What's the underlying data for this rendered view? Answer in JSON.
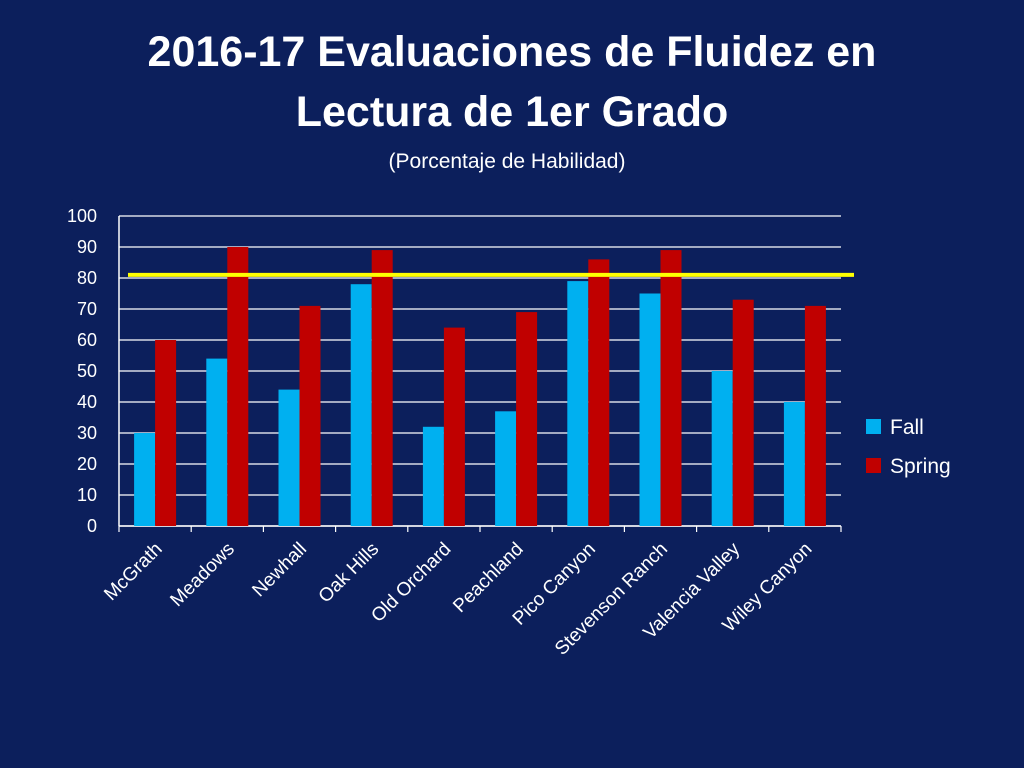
{
  "slide": {
    "title_line1": "2016-17 Evaluaciones de Fluidez en",
    "title_line2": "Lectura de 1er Grado",
    "subtitle": "(Porcentaje de Habilidad)"
  },
  "colors": {
    "background": "#0c1f5c",
    "fall": "#00b0f0",
    "spring": "#c00000",
    "benchmark": "#ffff00",
    "gridline": "#ffffff"
  },
  "chart_data": {
    "type": "bar",
    "title": "2016-17 Evaluaciones de Fluidez en Lectura de 1er Grado",
    "subtitle": "(Porcentaje de Habilidad)",
    "xlabel": "",
    "ylabel": "",
    "ylim": [
      0,
      100
    ],
    "yticks": [
      0,
      10,
      20,
      30,
      40,
      50,
      60,
      70,
      80,
      90,
      100
    ],
    "grid": true,
    "legend_position": "right",
    "categories": [
      "McGrath",
      "Meadows",
      "Newhall",
      "Oak Hills",
      "Old Orchard",
      "Peachland",
      "Pico Canyon",
      "Stevenson Ranch",
      "Valencia Valley",
      "Wiley Canyon"
    ],
    "series": [
      {
        "name": "Fall",
        "values": [
          30,
          54,
          44,
          78,
          32,
          37,
          79,
          75,
          50,
          40
        ]
      },
      {
        "name": "Spring",
        "values": [
          60,
          90,
          71,
          89,
          64,
          69,
          86,
          89,
          73,
          71
        ]
      }
    ],
    "benchmark_line": {
      "value": 81
    }
  }
}
